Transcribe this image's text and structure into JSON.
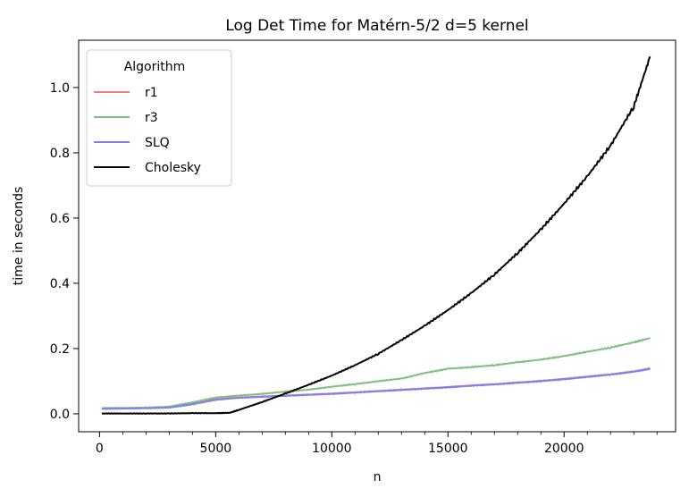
{
  "chart_data": {
    "type": "line",
    "title": "Log Det Time for Matérn-5/2 d=5 kernel",
    "xlabel": "n",
    "ylabel": "time in seconds",
    "xlim": [
      -900,
      24800
    ],
    "ylim": [
      -0.055,
      1.145
    ],
    "xticks": [
      0,
      5000,
      10000,
      15000,
      20000
    ],
    "yticks": [
      0.0,
      0.2,
      0.4,
      0.6,
      0.8,
      1.0
    ],
    "tick_labels_x": [
      "0",
      "5000",
      "10000",
      "15000",
      "20000"
    ],
    "tick_labels_y": [
      "0.0",
      "0.2",
      "0.4",
      "0.6",
      "0.8",
      "1.0"
    ],
    "grid": false,
    "legend": {
      "title": "Algorithm",
      "placement": "top-left"
    },
    "series": [
      {
        "name": "r1",
        "color": "#f08080",
        "x": [
          100,
          1000,
          2000,
          3000,
          4000,
          5000,
          6000,
          7000,
          8000,
          9000,
          10000,
          11000,
          12000,
          13000,
          14000,
          15000,
          16000,
          17000,
          18000,
          19000,
          20000,
          21000,
          22000,
          23000,
          23700
        ],
        "y": [
          0.017,
          0.017,
          0.018,
          0.02,
          0.03,
          0.045,
          0.05,
          0.053,
          0.056,
          0.059,
          0.062,
          0.066,
          0.07,
          0.074,
          0.078,
          0.082,
          0.087,
          0.091,
          0.096,
          0.101,
          0.107,
          0.114,
          0.121,
          0.13,
          0.139
        ]
      },
      {
        "name": "r3",
        "color": "#7fbf7f",
        "x": [
          100,
          1000,
          2000,
          3000,
          4000,
          5000,
          6000,
          7000,
          8000,
          9000,
          10000,
          11000,
          12000,
          13000,
          14000,
          15000,
          16000,
          17000,
          18000,
          19000,
          20000,
          21000,
          22000,
          23000,
          23700
        ],
        "y": [
          0.018,
          0.018,
          0.019,
          0.022,
          0.035,
          0.05,
          0.056,
          0.061,
          0.068,
          0.074,
          0.083,
          0.091,
          0.1,
          0.108,
          0.125,
          0.138,
          0.143,
          0.149,
          0.158,
          0.166,
          0.177,
          0.19,
          0.203,
          0.219,
          0.232
        ]
      },
      {
        "name": "SLQ",
        "color": "#7f7fef",
        "x": [
          100,
          1000,
          2000,
          3000,
          4000,
          5000,
          6000,
          7000,
          8000,
          9000,
          10000,
          11000,
          12000,
          13000,
          14000,
          15000,
          16000,
          17000,
          18000,
          19000,
          20000,
          21000,
          22000,
          23000,
          23700
        ],
        "y": [
          0.015,
          0.016,
          0.017,
          0.019,
          0.029,
          0.043,
          0.049,
          0.052,
          0.055,
          0.058,
          0.061,
          0.065,
          0.069,
          0.073,
          0.077,
          0.081,
          0.086,
          0.09,
          0.095,
          0.1,
          0.106,
          0.113,
          0.12,
          0.129,
          0.138
        ]
      },
      {
        "name": "Cholesky",
        "color": "#000000",
        "x": [
          100,
          1000,
          2000,
          3000,
          4000,
          5000,
          5600,
          6000,
          7000,
          8000,
          9000,
          10000,
          11000,
          12000,
          13000,
          14000,
          15000,
          16000,
          17000,
          18000,
          19000,
          20000,
          21000,
          22000,
          23000,
          23700
        ],
        "y": [
          0.001,
          0.001,
          0.001,
          0.001,
          0.002,
          0.002,
          0.003,
          0.012,
          0.036,
          0.062,
          0.089,
          0.117,
          0.149,
          0.184,
          0.226,
          0.27,
          0.318,
          0.37,
          0.427,
          0.493,
          0.565,
          0.644,
          0.728,
          0.822,
          0.942,
          1.095
        ]
      }
    ]
  }
}
